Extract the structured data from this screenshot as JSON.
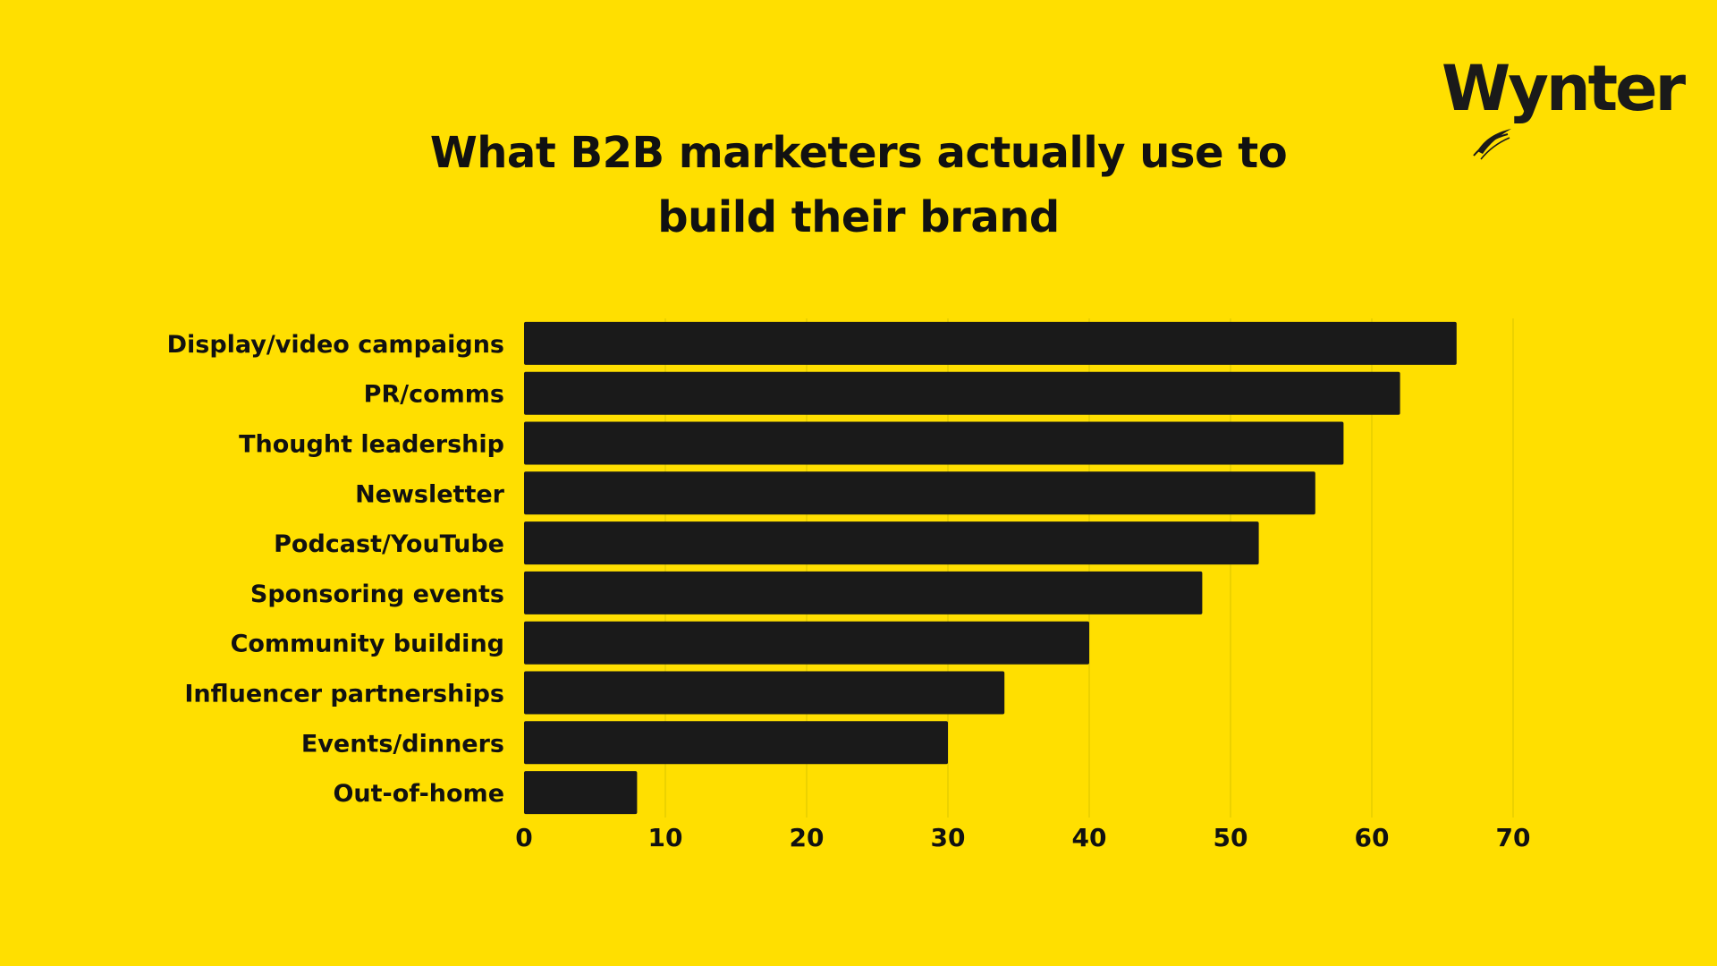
{
  "brand": {
    "logo_text": "Wynter"
  },
  "colors": {
    "background": "#FFDF00",
    "bar": "#1a1a1a",
    "text": "#111111",
    "grid": "#d9c400"
  },
  "chart_data": {
    "type": "bar",
    "orientation": "horizontal",
    "title_lines": [
      "What B2B marketers actually use to",
      "build their brand"
    ],
    "categories": [
      "Display/video campaigns",
      "PR/comms",
      "Thought leadership",
      "Newsletter",
      "Podcast/YouTube",
      "Sponsoring events",
      "Community building",
      "Influencer partnerships",
      "Events/dinners",
      "Out-of-home"
    ],
    "values": [
      66,
      62,
      58,
      56,
      52,
      48,
      40,
      34,
      30,
      8
    ],
    "xlim": [
      0,
      70
    ],
    "xticks": [
      0,
      10,
      20,
      30,
      40,
      50,
      60,
      70
    ],
    "xlabel": "",
    "ylabel": "",
    "grid": "vertical",
    "legend": "none"
  }
}
